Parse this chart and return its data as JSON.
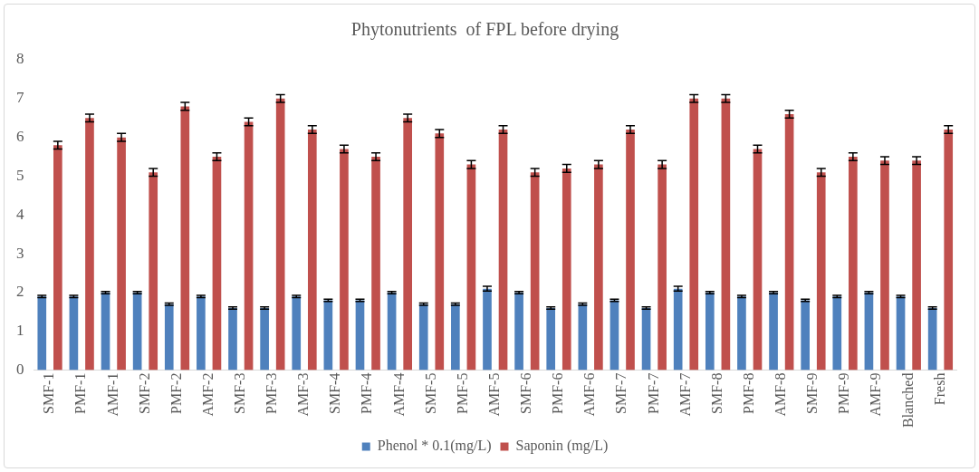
{
  "chart_data": {
    "type": "bar",
    "title": "Phytonutrients  of FPL before drying",
    "categories": [
      "SMF-1",
      "PMF-1",
      "AMF-1",
      "SMF-2",
      "PMF-2",
      "AMF-2",
      "SMF-3",
      "PMF-3",
      "AMF-3",
      "SMF-4",
      "PMF-4",
      "AMF-4",
      "SMF-5",
      "PMF-5",
      "AMF-5",
      "SMF-6",
      "PMF-6",
      "AMF-6",
      "SMF-7",
      "PMF-7",
      "AMF-7",
      "SMF-8",
      "PMF-8",
      "AMF-8",
      "SMF-9",
      "PMF-9",
      "AMF-9",
      "Blanched",
      "Fresh"
    ],
    "series": [
      {
        "name": "Phenol * 0.1(mg/L)",
        "color": "#4f81bd",
        "values": [
          1.9,
          1.9,
          2.0,
          2.0,
          1.7,
          1.9,
          1.6,
          1.6,
          1.9,
          1.8,
          1.8,
          2.0,
          1.7,
          1.7,
          2.1,
          2.0,
          1.6,
          1.7,
          1.8,
          1.6,
          2.1,
          2.0,
          1.9,
          2.0,
          1.8,
          1.9,
          2.0,
          1.9,
          1.6
        ],
        "errors": [
          0.03,
          0.03,
          0.03,
          0.03,
          0.03,
          0.03,
          0.03,
          0.03,
          0.03,
          0.03,
          0.03,
          0.03,
          0.03,
          0.03,
          0.06,
          0.03,
          0.03,
          0.03,
          0.03,
          0.03,
          0.06,
          0.03,
          0.03,
          0.03,
          0.03,
          0.03,
          0.03,
          0.03,
          0.03
        ]
      },
      {
        "name": "Saponin (mg/L)",
        "color": "#c0504d",
        "values": [
          5.8,
          6.5,
          6.0,
          5.1,
          6.8,
          5.5,
          6.4,
          7.0,
          6.2,
          5.7,
          5.5,
          6.5,
          6.1,
          5.3,
          6.2,
          5.1,
          5.2,
          5.3,
          6.2,
          5.3,
          7.0,
          7.0,
          5.7,
          6.6,
          5.1,
          5.5,
          5.4,
          5.4,
          6.2
        ],
        "errors": [
          0.1,
          0.1,
          0.1,
          0.1,
          0.1,
          0.1,
          0.1,
          0.1,
          0.1,
          0.1,
          0.1,
          0.1,
          0.1,
          0.1,
          0.1,
          0.1,
          0.1,
          0.1,
          0.1,
          0.1,
          0.1,
          0.1,
          0.1,
          0.1,
          0.1,
          0.1,
          0.1,
          0.1,
          0.1
        ]
      }
    ],
    "ylim": [
      0,
      8
    ],
    "yticks": [
      0,
      1,
      2,
      3,
      4,
      5,
      6,
      7,
      8
    ],
    "grid": false,
    "legend": "bottom"
  }
}
